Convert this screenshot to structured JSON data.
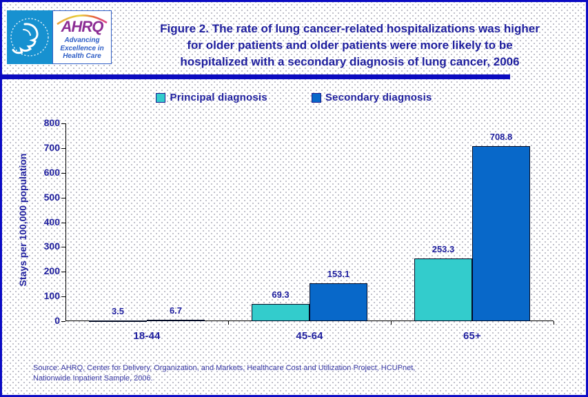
{
  "header": {
    "logo": {
      "hhs_icon": "hhs-eagle-icon",
      "rainbow_icon": "rainbow-arc-icon",
      "ahrq_acronym": "AHRQ",
      "tagline_lines": [
        "Advancing",
        "Excellence in",
        "Health Care"
      ]
    },
    "title_lines": [
      "Figure 2. The rate of lung cancer-related hospitalizations was higher",
      "for older patients and older patients were more likely to be",
      "hospitalized with a secondary diagnosis of lung cancer, 2006"
    ]
  },
  "legend": {
    "items": [
      {
        "label": "Principal diagnosis",
        "color": "#33CCCC"
      },
      {
        "label": "Secondary diagnosis",
        "color": "#0868C9"
      }
    ]
  },
  "chart_data": {
    "type": "bar",
    "title": "",
    "categories": [
      "18-44",
      "45-64",
      "65+"
    ],
    "series": [
      {
        "name": "Principal diagnosis",
        "color": "#33CCCC",
        "values": [
          3.5,
          69.3,
          253.3
        ]
      },
      {
        "name": "Secondary diagnosis",
        "color": "#0868C9",
        "values": [
          6.7,
          153.1,
          708.8
        ]
      }
    ],
    "xlabel": "",
    "ylabel": "Stays per 100,000 population",
    "ylim": [
      0,
      800
    ],
    "ytick_step": 100,
    "grid": false,
    "legend_position": "top",
    "data_labels": true
  },
  "source": {
    "lines": [
      "Source: AHRQ, Center for Delivery, Organization, and Markets, Healthcare Cost and Utilization Project, HCUPnet,",
      "Nationwide Inpatient Sample, 2006."
    ]
  },
  "colors": {
    "border": "#0B0BC4",
    "rule": "#0B0BC0",
    "navy_text": "#1E1E9E",
    "source_text": "#3A3AA6",
    "hhs_background": "#1791D0",
    "ahrq_purple": "#8C2C94",
    "ahrq_blue": "#2E5EC6"
  }
}
